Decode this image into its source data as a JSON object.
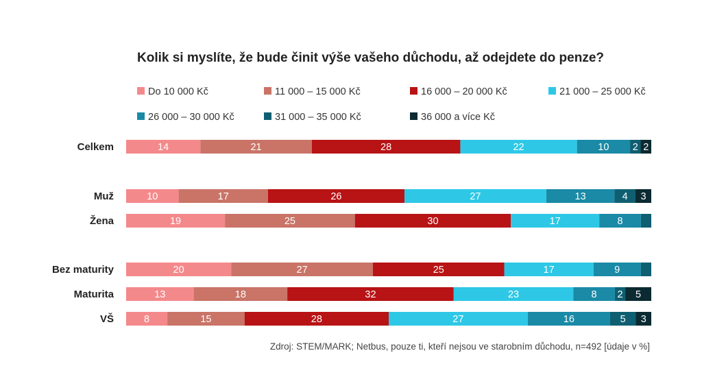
{
  "chart_data": {
    "type": "bar",
    "orientation": "horizontal",
    "stacked": true,
    "title": "Kolik si myslíte, že bude činit výše vašeho důchodu, až odejdete do penze?",
    "categories": [
      "Celkem",
      "Muž",
      "Žena",
      "Bez maturity",
      "Maturita",
      "VŠ"
    ],
    "series": [
      {
        "name": "Do 10 000 Kč",
        "color": "#f4898b",
        "values": [
          14,
          10,
          19,
          20,
          13,
          8
        ],
        "labels": [
          "14",
          "10",
          "19",
          "20",
          "13",
          "8"
        ]
      },
      {
        "name": "11 000 – 15 000 Kč",
        "color": "#c97467",
        "values": [
          21,
          17,
          25,
          27,
          18,
          15
        ],
        "labels": [
          "21",
          "17",
          "25",
          "27",
          "18",
          "15"
        ]
      },
      {
        "name": "16 000 – 20 000 Kč",
        "color": "#b81315",
        "values": [
          28,
          26,
          30,
          25,
          32,
          28
        ],
        "labels": [
          "28",
          "26",
          "30",
          "25",
          "32",
          "28"
        ]
      },
      {
        "name": "21 000 – 25 000 Kč",
        "color": "#2ec8e6",
        "values": [
          22,
          27,
          17,
          17,
          23,
          27
        ],
        "labels": [
          "22",
          "27",
          "17",
          "17",
          "23",
          "27"
        ]
      },
      {
        "name": "26 000 – 30 000 Kč",
        "color": "#1a8aa6",
        "values": [
          10,
          13,
          8,
          9,
          8,
          16
        ],
        "labels": [
          "10",
          "13",
          "8",
          "9",
          "8",
          "16"
        ]
      },
      {
        "name": "31 000 – 35 000 Kč",
        "color": "#0f5f72",
        "values": [
          2,
          4,
          2,
          2,
          2,
          5
        ],
        "labels": [
          "2",
          "4",
          "",
          "",
          "2",
          "5"
        ]
      },
      {
        "name": "36 000 a více Kč",
        "color": "#0b2a31",
        "values": [
          2,
          3,
          0,
          0,
          5,
          3
        ],
        "labels": [
          "2",
          "3",
          "",
          "",
          "5",
          "3"
        ]
      }
    ],
    "xlim": [
      0,
      100
    ],
    "legend": "top",
    "grid": false,
    "source": "Zdroj: STEM/MARK; Netbus, pouze ti, kteří nejsou ve starobním důchodu, n=492 [údaje v %]"
  }
}
